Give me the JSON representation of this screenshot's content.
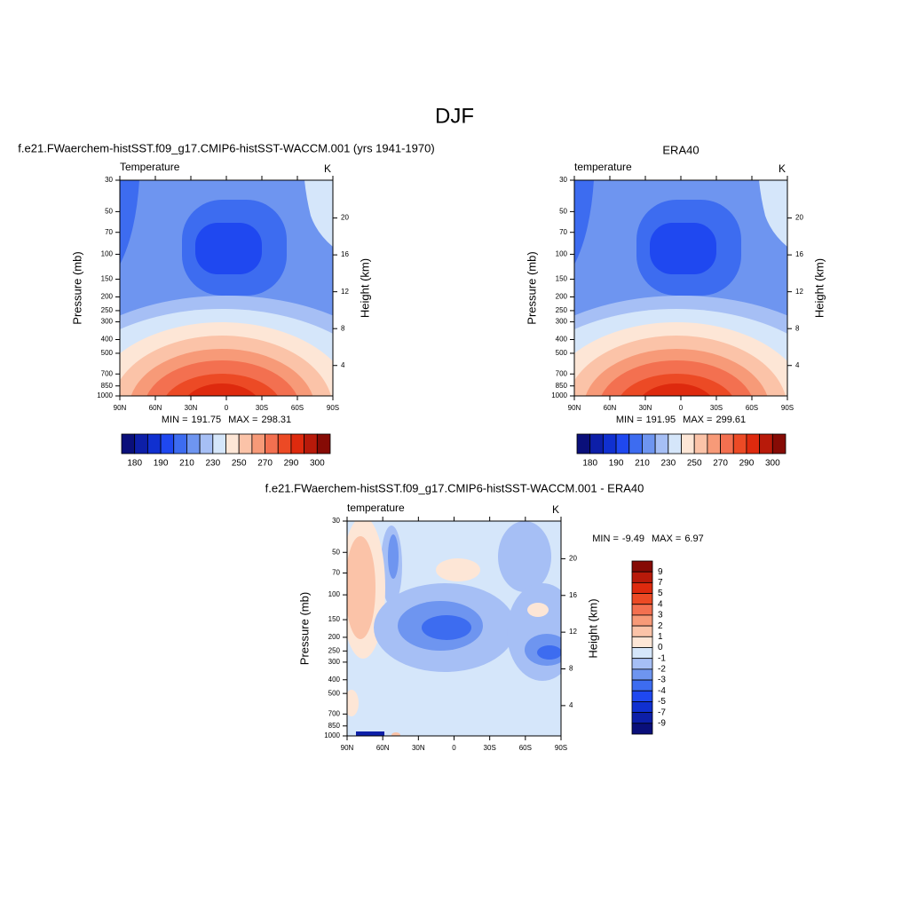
{
  "title": "DJF",
  "palette": [
    "#0a0f7a",
    "#0d1fa8",
    "#1030d0",
    "#1f48f0",
    "#3d6cf0",
    "#6e95f0",
    "#a6bff5",
    "#d5e6fa",
    "#fde6d6",
    "#fbc3a8",
    "#f79a78",
    "#f37050",
    "#ec4a25",
    "#de2a0e",
    "#b81a0a",
    "#860b05"
  ],
  "chart_data": [
    {
      "type": "contour",
      "title": "f.e21.FWaerchem-histSST.f09_g17.CMIP6-histSST-WACCM.001 (yrs 1941-1970)",
      "subtitle_left": "Temperature",
      "subtitle_right": "K",
      "ylabel": "Pressure (mb)",
      "y2label": "Height (km)",
      "ylog": true,
      "ylim": [
        1000,
        30
      ],
      "yticks": [
        30,
        50,
        70,
        100,
        150,
        200,
        250,
        300,
        400,
        500,
        700,
        850,
        1000
      ],
      "y2lim": [
        0.7,
        24.1
      ],
      "y2ticks": [
        4,
        8,
        12,
        16,
        20
      ],
      "xlim": [
        90,
        -90
      ],
      "xticks": [
        {
          "value": 90,
          "label": "90N"
        },
        {
          "value": 60,
          "label": "60N"
        },
        {
          "value": 30,
          "label": "30N"
        },
        0,
        {
          "value": -30,
          "label": "30S"
        },
        {
          "value": -60,
          "label": "60S"
        },
        {
          "value": -90,
          "label": "90S"
        }
      ],
      "stats": {
        "min_label": "MIN =",
        "min": 191.75,
        "max_label": "MAX =",
        "max": 298.31
      },
      "colorbar": {
        "orientation": "horizontal",
        "labels": [
          180,
          190,
          210,
          230,
          250,
          270,
          290,
          300
        ]
      }
    },
    {
      "type": "contour",
      "title": "ERA40",
      "subtitle_left": "temperature",
      "subtitle_right": "K",
      "ylabel": "Pressure (mb)",
      "y2label": "Height (km)",
      "ylog": true,
      "ylim": [
        1000,
        30
      ],
      "yticks": [
        30,
        50,
        70,
        100,
        150,
        200,
        250,
        300,
        400,
        500,
        700,
        850,
        1000
      ],
      "y2lim": [
        0.7,
        24.1
      ],
      "y2ticks": [
        4,
        8,
        12,
        16,
        20
      ],
      "xlim": [
        90,
        -90
      ],
      "xticks": [
        {
          "value": 90,
          "label": "90N"
        },
        {
          "value": 60,
          "label": "60N"
        },
        {
          "value": 30,
          "label": "30N"
        },
        0,
        {
          "value": -30,
          "label": "30S"
        },
        {
          "value": -60,
          "label": "60S"
        },
        {
          "value": -90,
          "label": "90S"
        }
      ],
      "stats": {
        "min_label": "MIN =",
        "min": 191.95,
        "max_label": "MAX =",
        "max": 299.61
      },
      "colorbar": {
        "orientation": "horizontal",
        "labels": [
          180,
          190,
          210,
          230,
          250,
          270,
          290,
          300
        ]
      }
    },
    {
      "type": "contour",
      "title": "f.e21.FWaerchem-histSST.f09_g17.CMIP6-histSST-WACCM.001 - ERA40",
      "subtitle_left": "temperature",
      "subtitle_right": "K",
      "ylabel": "Pressure (mb)",
      "y2label": "Height (km)",
      "ylog": true,
      "ylim": [
        1000,
        30
      ],
      "yticks": [
        30,
        50,
        70,
        100,
        150,
        200,
        250,
        300,
        400,
        500,
        700,
        850,
        1000
      ],
      "y2lim": [
        0.7,
        24.1
      ],
      "y2ticks": [
        4,
        8,
        12,
        16,
        20
      ],
      "xlim": [
        90,
        -90
      ],
      "xticks": [
        {
          "value": 90,
          "label": "90N"
        },
        {
          "value": 60,
          "label": "60N"
        },
        {
          "value": 30,
          "label": "30N"
        },
        0,
        {
          "value": -30,
          "label": "30S"
        },
        {
          "value": -60,
          "label": "60S"
        },
        {
          "value": -90,
          "label": "90S"
        }
      ],
      "stats": {
        "min_label": "MIN =",
        "min": -9.49,
        "max_label": "MAX =",
        "max": 6.97
      },
      "colorbar": {
        "orientation": "vertical",
        "labels": [
          9,
          7,
          5,
          4,
          3,
          2,
          1,
          0,
          -1,
          -2,
          -3,
          -4,
          -5,
          -7,
          -9
        ]
      }
    }
  ]
}
